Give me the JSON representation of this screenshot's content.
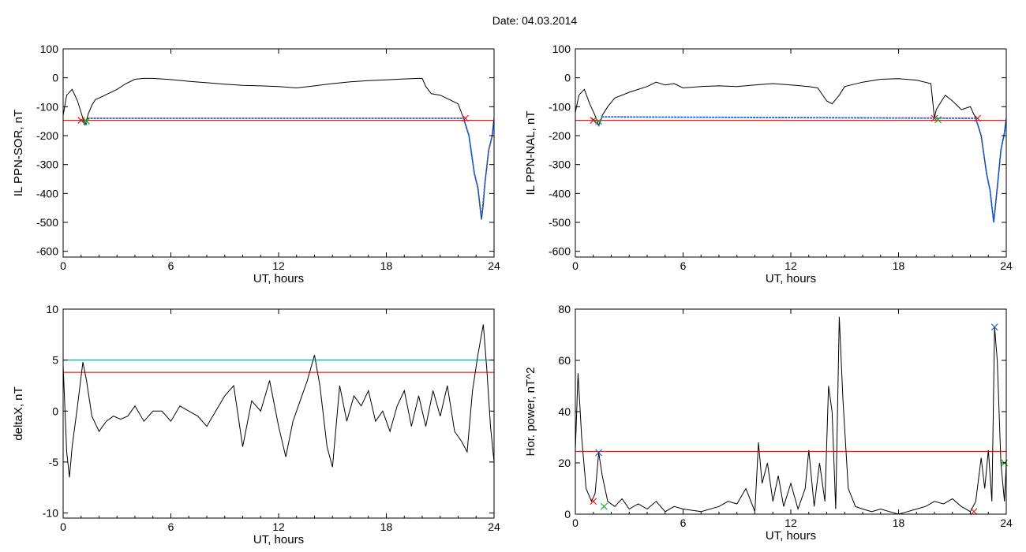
{
  "figure_title": "Date:  04.03.2014",
  "colors": {
    "trace": "#000000",
    "threshold_red": "#cc0000",
    "threshold_teal": "#008080",
    "fit_blue": "#1f5fd6",
    "marker_red": "#cc2222",
    "marker_green": "#22aa22",
    "marker_blue": "#2255cc"
  },
  "chart_data": [
    {
      "id": "il-sor",
      "type": "line",
      "ylabel": "IL PPN-SOR, nT",
      "xlabel": "UT, hours",
      "xlim": [
        0,
        24
      ],
      "ylim": [
        -620,
        100
      ],
      "xticks": [
        0,
        6,
        12,
        18,
        24
      ],
      "yticks": [
        100,
        0,
        -100,
        -200,
        -300,
        -400,
        -500,
        -600
      ],
      "grid": false,
      "series": [
        {
          "role": "trace",
          "x": [
            0,
            0.2,
            0.5,
            0.8,
            1.1,
            1.25,
            1.4,
            1.6,
            1.8,
            2.0,
            2.5,
            3.0,
            3.5,
            4.0,
            4.5,
            5.0,
            6,
            7,
            8,
            9,
            10,
            11,
            12,
            13,
            14,
            15,
            16,
            17,
            18,
            19,
            19.8,
            20.0,
            20.2,
            20.5,
            21.0,
            21.5,
            22.0,
            22.3,
            22.6,
            22.9,
            23.1,
            23.3,
            23.4,
            23.5,
            23.7,
            23.9,
            24.0
          ],
          "y": [
            -130,
            -60,
            -40,
            -80,
            -140,
            -160,
            -125,
            -95,
            -75,
            -70,
            -55,
            -40,
            -20,
            -5,
            -2,
            -2,
            -6,
            -12,
            -17,
            -22,
            -26,
            -28,
            -30,
            -35,
            -28,
            -20,
            -14,
            -10,
            -7,
            -4,
            -2,
            -2,
            -30,
            -55,
            -60,
            -75,
            -90,
            -140,
            -200,
            -330,
            -380,
            -490,
            -440,
            -360,
            -250,
            -200,
            -140
          ]
        },
        {
          "role": "threshold",
          "color": "#cc0000",
          "y": -147
        },
        {
          "role": "fit",
          "color": "#1f5fd6",
          "x": [
            0.9,
            1.1,
            1.25,
            1.4,
            22.3,
            22.6,
            22.9,
            23.1,
            23.3,
            23.5,
            23.7,
            23.9,
            24.0
          ],
          "y": [
            -145,
            -150,
            -165,
            -140,
            -140,
            -200,
            -330,
            -380,
            -490,
            -360,
            -250,
            -200,
            -140
          ]
        }
      ],
      "markers": [
        {
          "x": 1.0,
          "y": -147,
          "color": "#cc2222"
        },
        {
          "x": 1.3,
          "y": -150,
          "color": "#22aa22"
        },
        {
          "x": 22.4,
          "y": -140,
          "color": "#cc2222"
        }
      ]
    },
    {
      "id": "il-nal",
      "type": "line",
      "ylabel": "IL PPN-NAL, nT",
      "xlabel": "UT, hours",
      "xlim": [
        0,
        24
      ],
      "ylim": [
        -620,
        100
      ],
      "xticks": [
        0,
        6,
        12,
        18,
        24
      ],
      "yticks": [
        100,
        0,
        -100,
        -200,
        -300,
        -400,
        -500,
        -600
      ],
      "grid": false,
      "series": [
        {
          "role": "trace",
          "x": [
            0,
            0.2,
            0.5,
            0.8,
            1.1,
            1.3,
            1.5,
            1.8,
            2.2,
            3.0,
            4.0,
            4.5,
            5.0,
            5.5,
            6,
            7,
            8,
            9,
            10,
            11,
            12,
            13,
            13.5,
            14.0,
            14.3,
            14.7,
            15.0,
            16,
            17,
            18,
            19,
            19.8,
            20.0,
            20.1,
            20.3,
            20.6,
            21.0,
            21.5,
            22.0,
            22.3,
            22.6,
            22.9,
            23.1,
            23.3,
            23.4,
            23.5,
            23.7,
            23.9,
            24.0
          ],
          "y": [
            -120,
            -60,
            -40,
            -90,
            -130,
            -165,
            -130,
            -100,
            -70,
            -50,
            -30,
            -15,
            -25,
            -20,
            -35,
            -30,
            -28,
            -30,
            -25,
            -20,
            -25,
            -30,
            -35,
            -80,
            -90,
            -60,
            -30,
            -15,
            -5,
            -3,
            -8,
            -20,
            -140,
            -110,
            -90,
            -60,
            -80,
            -110,
            -100,
            -140,
            -200,
            -330,
            -390,
            -500,
            -440,
            -380,
            -250,
            -190,
            -140
          ]
        },
        {
          "role": "threshold",
          "color": "#cc0000",
          "y": -147
        },
        {
          "role": "fit",
          "color": "#1f5fd6",
          "x": [
            0.9,
            1.1,
            1.3,
            1.5,
            22.3,
            22.6,
            22.9,
            23.1,
            23.3,
            23.5,
            23.7,
            23.9,
            24.0
          ],
          "y": [
            -140,
            -150,
            -165,
            -135,
            -140,
            -200,
            -330,
            -390,
            -500,
            -380,
            -250,
            -190,
            -140
          ]
        }
      ],
      "markers": [
        {
          "x": 1.0,
          "y": -147,
          "color": "#cc2222"
        },
        {
          "x": 1.3,
          "y": -150,
          "color": "#22aa22"
        },
        {
          "x": 20.0,
          "y": -140,
          "color": "#cc2222"
        },
        {
          "x": 20.2,
          "y": -145,
          "color": "#22aa22"
        },
        {
          "x": 22.4,
          "y": -140,
          "color": "#cc2222"
        }
      ]
    },
    {
      "id": "deltax",
      "type": "line",
      "ylabel": "deltaX, nT",
      "xlabel": "UT, hours",
      "xlim": [
        0,
        24
      ],
      "ylim": [
        -10.5,
        10
      ],
      "xticks": [
        0,
        6,
        12,
        18,
        24
      ],
      "yticks": [
        10,
        5,
        0,
        -5,
        -10
      ],
      "grid": false,
      "series": [
        {
          "role": "trace",
          "x": [
            0,
            0.2,
            0.35,
            0.5,
            0.8,
            1.1,
            1.3,
            1.6,
            2.0,
            2.4,
            2.8,
            3.2,
            3.6,
            4.0,
            4.5,
            5.0,
            5.5,
            6.0,
            6.5,
            7.0,
            7.5,
            8.0,
            8.5,
            9.0,
            9.5,
            10.0,
            10.5,
            11.0,
            11.5,
            12.0,
            12.4,
            12.8,
            13.2,
            13.6,
            14.0,
            14.3,
            14.7,
            15.0,
            15.4,
            15.8,
            16.2,
            16.6,
            17.0,
            17.4,
            17.8,
            18.2,
            18.6,
            19.0,
            19.4,
            19.8,
            20.2,
            20.6,
            21.0,
            21.4,
            21.8,
            22.2,
            22.5,
            22.8,
            23.1,
            23.4,
            23.6,
            23.8,
            24.0
          ],
          "y": [
            4.5,
            -4.0,
            -6.5,
            -3.5,
            0.5,
            4.8,
            3.0,
            -0.5,
            -2.0,
            -1.0,
            -0.5,
            -0.8,
            -0.5,
            0.5,
            -1.0,
            0.0,
            0.0,
            -1.0,
            0.5,
            0.0,
            -0.5,
            -1.5,
            0.0,
            1.5,
            2.5,
            -3.5,
            1.0,
            0.0,
            3.0,
            -1.5,
            -4.5,
            -1.0,
            1.0,
            3.0,
            5.5,
            2.5,
            -3.5,
            -5.5,
            2.5,
            -1.0,
            1.5,
            0.5,
            2.0,
            -1.0,
            0.0,
            -2.0,
            0.5,
            2.0,
            -1.5,
            1.5,
            -1.5,
            2.0,
            -0.5,
            2.5,
            -2.0,
            -3.0,
            -4.0,
            2.0,
            5.5,
            8.5,
            4.0,
            -1.5,
            -5.0
          ]
        },
        {
          "role": "threshold",
          "color": "#008080",
          "y": 5.0
        },
        {
          "role": "threshold",
          "color": "#cc0000",
          "y": 3.8
        }
      ],
      "markers": []
    },
    {
      "id": "hor-power",
      "type": "line",
      "ylabel": "Hor. power, nT^2",
      "xlabel": "UT, hours",
      "xlim": [
        0,
        24
      ],
      "ylim": [
        0,
        80
      ],
      "xticks": [
        0,
        6,
        12,
        18,
        24
      ],
      "yticks": [
        0,
        20,
        40,
        60,
        80
      ],
      "grid": false,
      "series": [
        {
          "role": "trace",
          "x": [
            0,
            0.15,
            0.35,
            0.6,
            0.9,
            1.1,
            1.3,
            1.5,
            1.8,
            2.2,
            2.6,
            3.0,
            3.5,
            4.0,
            4.5,
            5.0,
            5.5,
            6.0,
            7.0,
            8.0,
            8.5,
            9.0,
            9.5,
            10.0,
            10.2,
            10.4,
            10.7,
            11.0,
            11.3,
            11.6,
            12.0,
            12.4,
            12.8,
            13.0,
            13.3,
            13.6,
            13.9,
            14.1,
            14.3,
            14.5,
            14.7,
            14.9,
            15.2,
            15.6,
            16.0,
            16.5,
            17.0,
            17.5,
            18.0,
            18.5,
            19.0,
            19.5,
            20.0,
            20.5,
            21.0,
            21.5,
            22.0,
            22.3,
            22.6,
            22.8,
            23.0,
            23.2,
            23.35,
            23.5,
            23.7,
            23.9,
            24.0
          ],
          "y": [
            25,
            55,
            30,
            10,
            5,
            8,
            24,
            15,
            5,
            3,
            6,
            2,
            4,
            2,
            5,
            1,
            3,
            2,
            1,
            3,
            5,
            4,
            10,
            1,
            28,
            12,
            20,
            5,
            15,
            3,
            12,
            2,
            10,
            25,
            3,
            20,
            5,
            50,
            40,
            2,
            77,
            45,
            10,
            3,
            2,
            1,
            2,
            1,
            0,
            1,
            2,
            3,
            5,
            4,
            6,
            3,
            1,
            5,
            22,
            10,
            25,
            5,
            73,
            60,
            20,
            5,
            20
          ]
        },
        {
          "role": "threshold",
          "color": "#cc0000",
          "y": 24.5
        }
      ],
      "markers": [
        {
          "x": 1.3,
          "y": 24,
          "color": "#2255cc"
        },
        {
          "x": 1.0,
          "y": 5,
          "color": "#cc2222"
        },
        {
          "x": 1.6,
          "y": 3,
          "color": "#22aa22"
        },
        {
          "x": 22.2,
          "y": 1,
          "color": "#cc2222"
        },
        {
          "x": 23.35,
          "y": 73,
          "color": "#2255cc"
        },
        {
          "x": 23.9,
          "y": 20,
          "color": "#22aa22"
        }
      ]
    }
  ]
}
